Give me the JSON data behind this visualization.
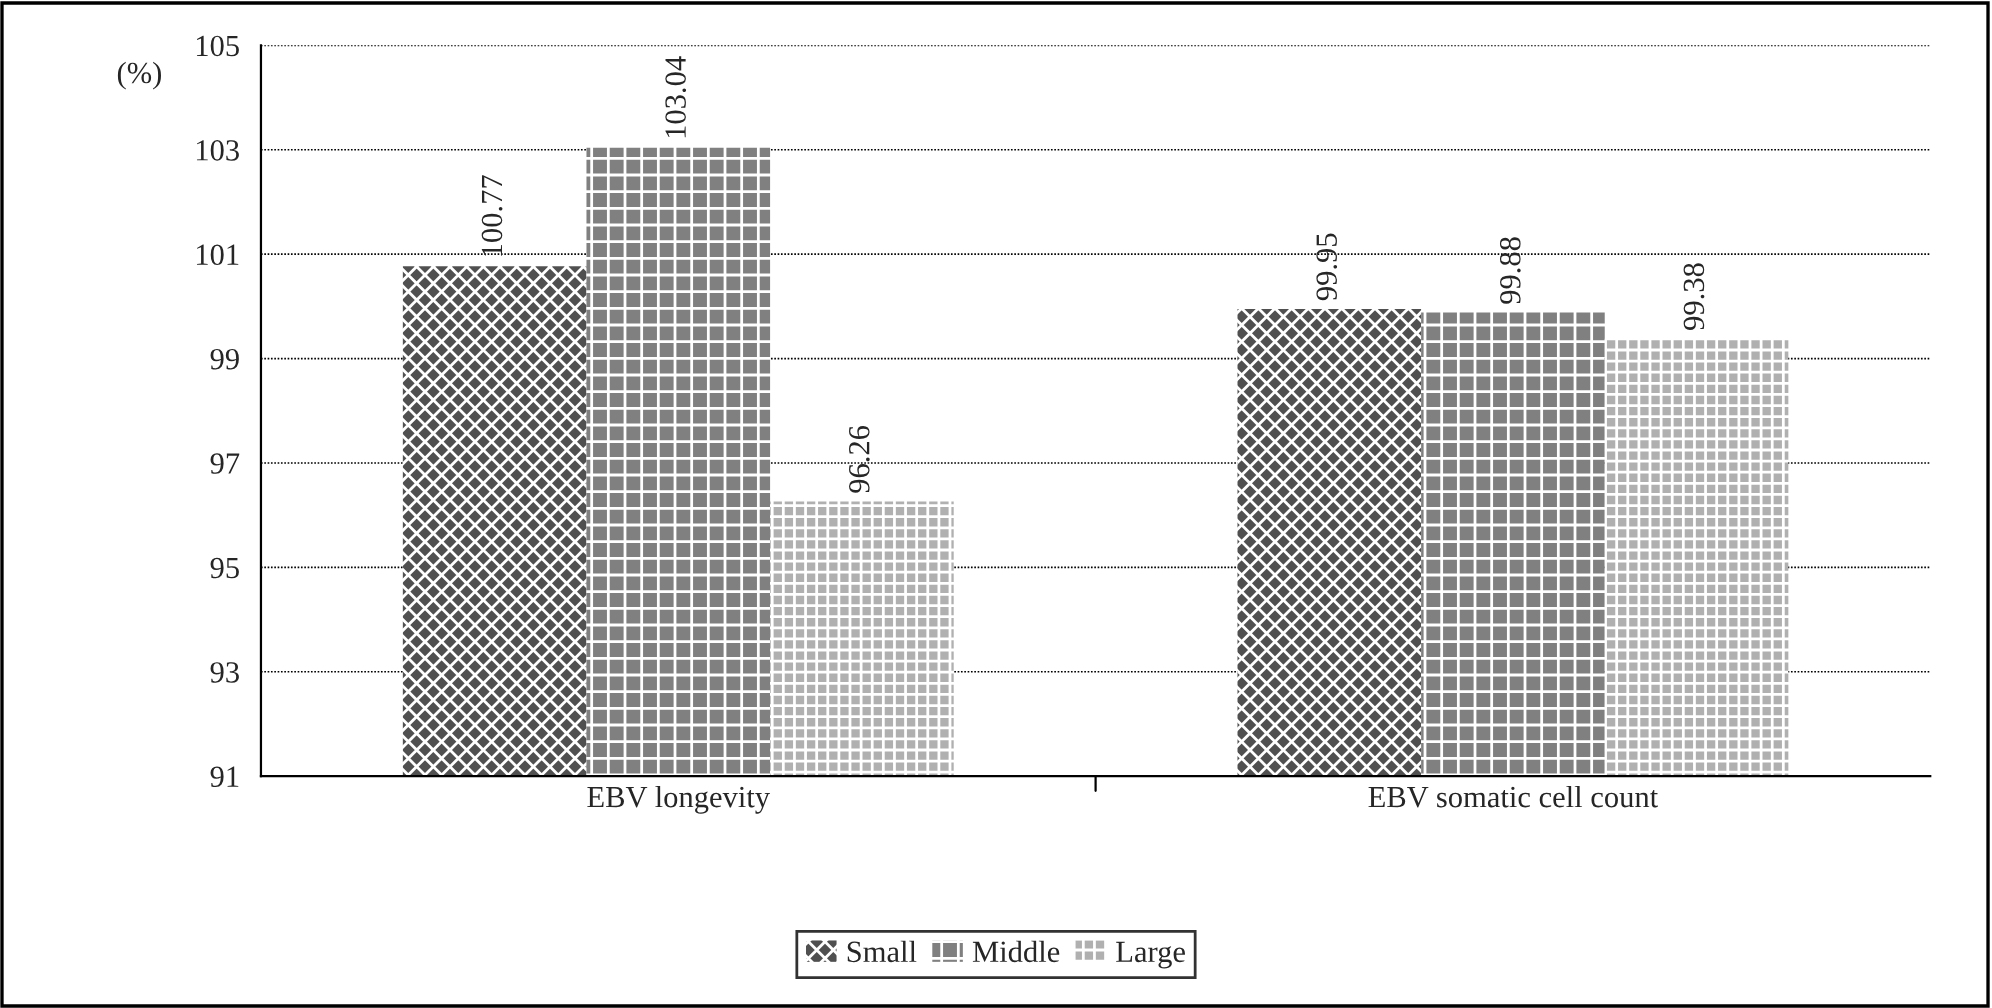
{
  "chart_data": {
    "type": "bar",
    "ylabel": "(%)",
    "categories": [
      "EBV longevity",
      "EBV somatic cell count"
    ],
    "series": [
      {
        "name": "Small",
        "color": "#505050",
        "values": [
          100.77,
          99.95
        ]
      },
      {
        "name": "Middle",
        "color": "#808080",
        "values": [
          103.04,
          99.88
        ]
      },
      {
        "name": "Large",
        "color": "#b0b0b0",
        "values": [
          96.26,
          99.38
        ]
      }
    ],
    "ylim": [
      91,
      105
    ],
    "yticks": [
      91,
      93,
      95,
      97,
      99,
      101,
      103,
      105
    ],
    "grid": "y",
    "legend": "bottom",
    "data_labels": true
  }
}
